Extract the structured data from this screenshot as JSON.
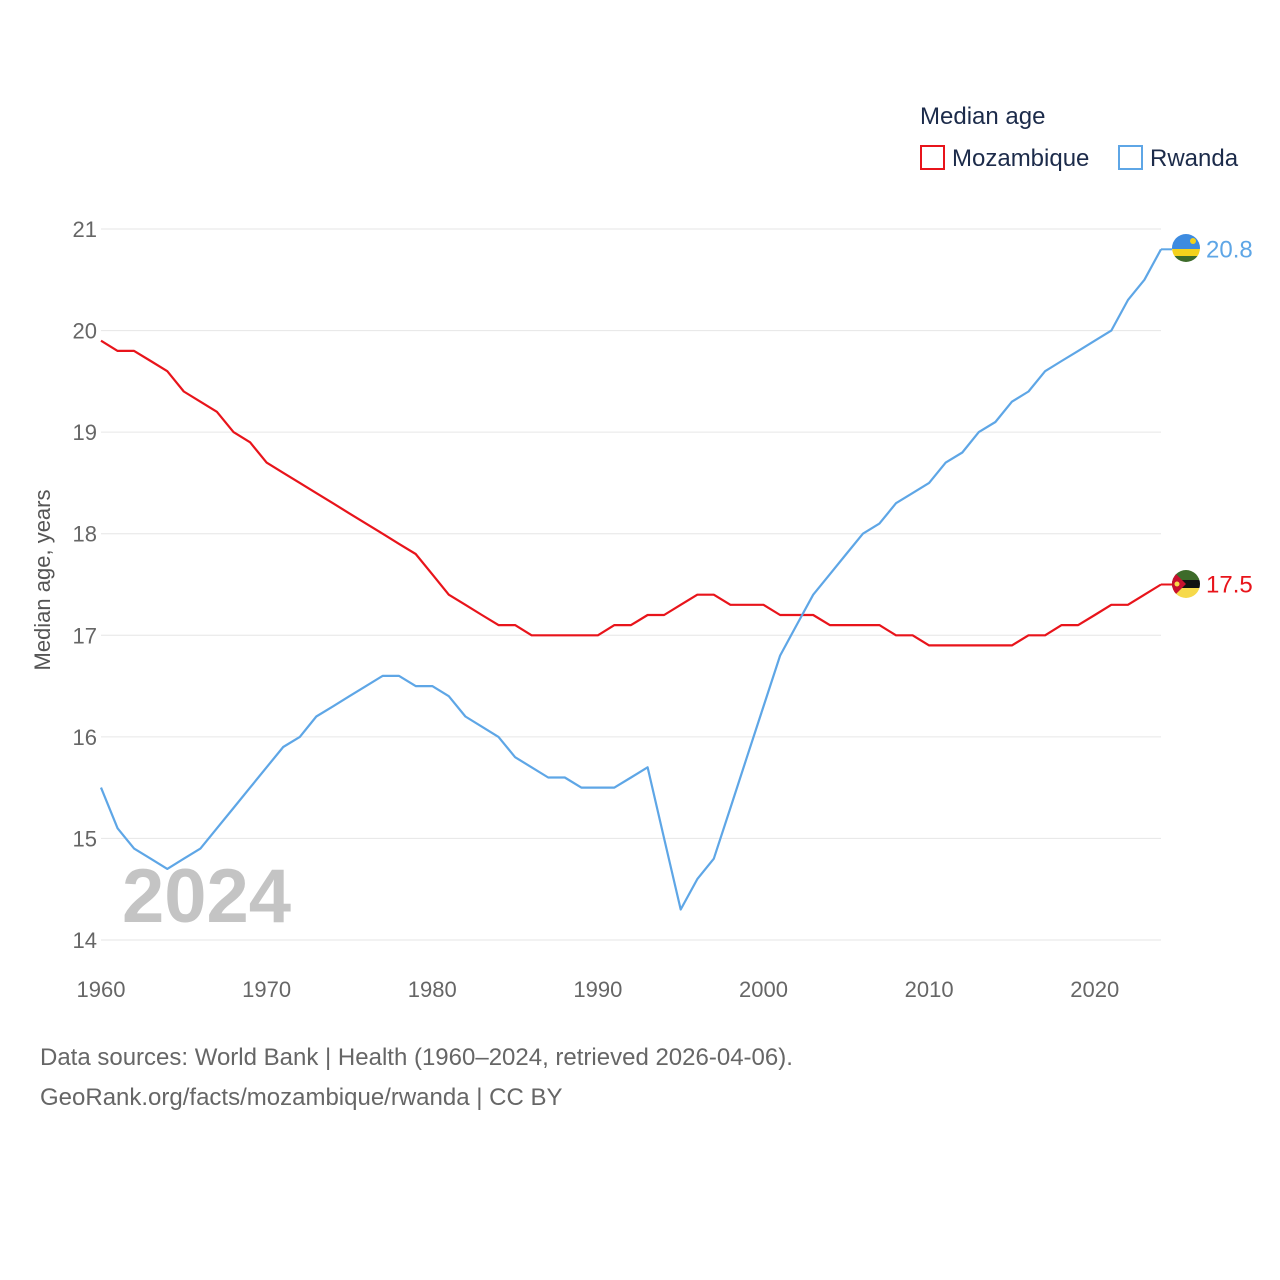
{
  "chart_data": {
    "type": "line",
    "legend_title": "Median age",
    "ylabel": "Median age, years",
    "year_label": "2024",
    "xlim": [
      1960,
      2024
    ],
    "ylim": [
      14,
      21
    ],
    "x_ticks": [
      1960,
      1970,
      1980,
      1990,
      2000,
      2010,
      2020
    ],
    "y_ticks": [
      14,
      15,
      16,
      17,
      18,
      19,
      20,
      21
    ],
    "legend_position": "top-right",
    "x": [
      1960,
      1961,
      1962,
      1963,
      1964,
      1965,
      1966,
      1967,
      1968,
      1969,
      1970,
      1971,
      1972,
      1973,
      1974,
      1975,
      1976,
      1977,
      1978,
      1979,
      1980,
      1981,
      1982,
      1983,
      1984,
      1985,
      1986,
      1987,
      1988,
      1989,
      1990,
      1991,
      1992,
      1993,
      1994,
      1995,
      1996,
      1997,
      1998,
      1999,
      2000,
      2001,
      2002,
      2003,
      2004,
      2005,
      2006,
      2007,
      2008,
      2009,
      2010,
      2011,
      2012,
      2013,
      2014,
      2015,
      2016,
      2017,
      2018,
      2019,
      2020,
      2021,
      2022,
      2023,
      2024
    ],
    "series": [
      {
        "name": "Mozambique",
        "color": "#e8141b",
        "end_label": "17.5",
        "values": [
          19.9,
          19.8,
          19.8,
          19.7,
          19.6,
          19.4,
          19.3,
          19.2,
          19.0,
          18.9,
          18.7,
          18.6,
          18.5,
          18.4,
          18.3,
          18.2,
          18.1,
          18.0,
          17.9,
          17.8,
          17.6,
          17.4,
          17.3,
          17.2,
          17.1,
          17.1,
          17.0,
          17.0,
          17.0,
          17.0,
          17.0,
          17.1,
          17.1,
          17.2,
          17.2,
          17.3,
          17.4,
          17.4,
          17.3,
          17.3,
          17.3,
          17.2,
          17.2,
          17.2,
          17.1,
          17.1,
          17.1,
          17.1,
          17.0,
          17.0,
          16.9,
          16.9,
          16.9,
          16.9,
          16.9,
          16.9,
          17.0,
          17.0,
          17.1,
          17.1,
          17.2,
          17.3,
          17.3,
          17.4,
          17.5
        ]
      },
      {
        "name": "Rwanda",
        "color": "#5ea6e6",
        "end_label": "20.8",
        "values": [
          15.5,
          15.1,
          14.9,
          14.8,
          14.7,
          14.8,
          14.9,
          15.1,
          15.3,
          15.5,
          15.7,
          15.9,
          16.0,
          16.2,
          16.3,
          16.4,
          16.5,
          16.6,
          16.6,
          16.5,
          16.5,
          16.4,
          16.2,
          16.1,
          16.0,
          15.8,
          15.7,
          15.6,
          15.6,
          15.5,
          15.5,
          15.5,
          15.6,
          15.7,
          15.0,
          14.3,
          14.6,
          14.8,
          15.3,
          15.8,
          16.3,
          16.8,
          17.1,
          17.4,
          17.6,
          17.8,
          18.0,
          18.1,
          18.3,
          18.4,
          18.5,
          18.7,
          18.8,
          19.0,
          19.1,
          19.3,
          19.4,
          19.6,
          19.7,
          19.8,
          19.9,
          20.0,
          20.3,
          20.5,
          20.8
        ]
      }
    ]
  },
  "footer": {
    "line1": "Data sources: World Bank | Health (1960–2024, retrieved 2026-04-06).",
    "line2": "GeoRank.org/facts/mozambique/rwanda | CC BY"
  }
}
